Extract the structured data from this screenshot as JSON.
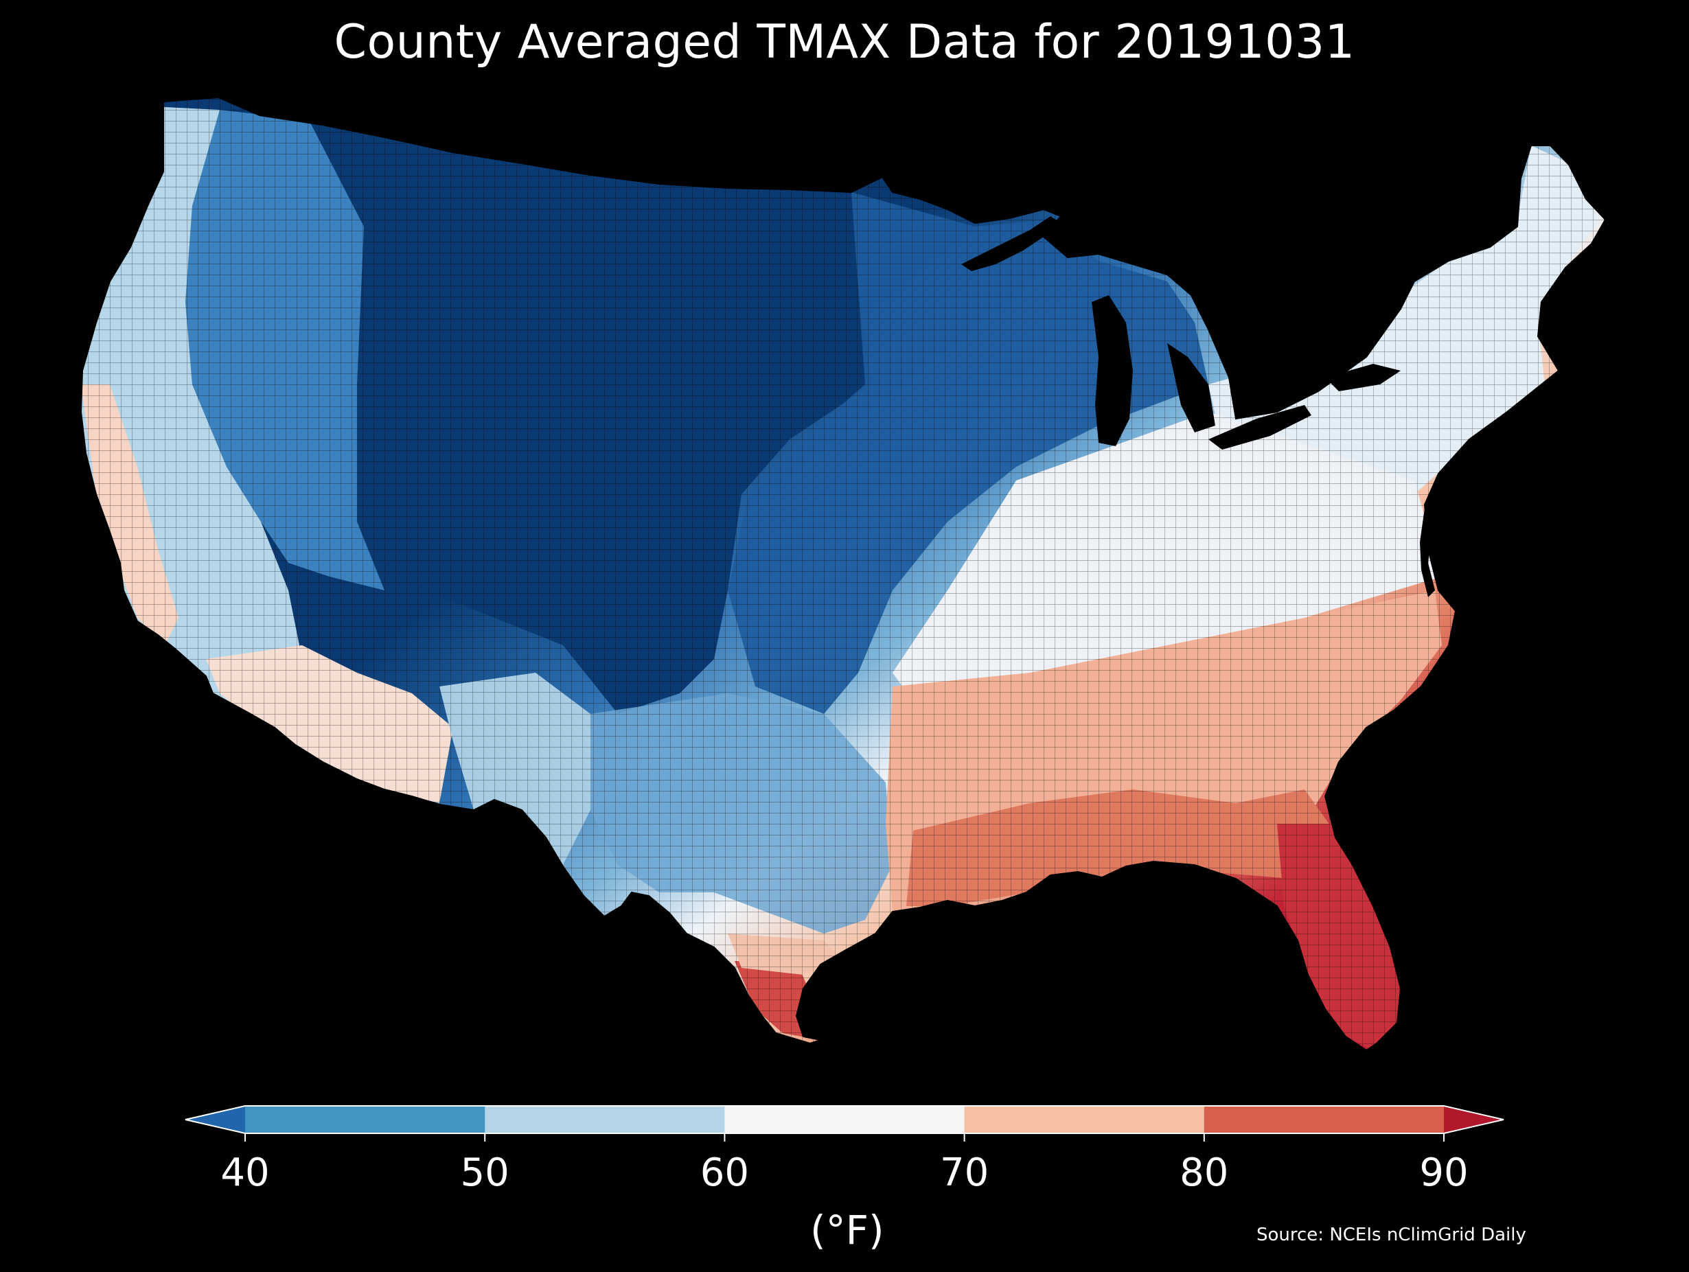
{
  "title": "County Averaged TMAX Data for 20191031",
  "map": {
    "region": "Contiguous United States",
    "background_color": "#000000",
    "county_border_color": "#000000",
    "state_border_color": "#222222",
    "temperature_pattern": [
      {
        "area": "Northern Plains / Rockies (MT, WY, ND, SD, NE, CO, KS)",
        "band": "<40",
        "color": "#0b3a72"
      },
      {
        "area": "Great Lakes / Upper Midwest",
        "band": "40-50",
        "color": "#1f62a6"
      },
      {
        "area": "Great Basin / Pacific Northwest interior",
        "band": "40-50",
        "color": "#3d86c0"
      },
      {
        "area": "Pacific coast / Arizona / New Mexico",
        "band": "50-60",
        "color": "#b4d5e8"
      },
      {
        "area": "Ohio Valley / Northeast",
        "band": "60-70",
        "color": "#eaf1f7"
      },
      {
        "area": "Southeast / Gulf Coast",
        "band": "70-80",
        "color": "#f2a98b"
      },
      {
        "area": "Florida / South Texas tip",
        "band": ">80",
        "color": "#c62a38"
      }
    ]
  },
  "legend": {
    "ticks": [
      "40",
      "50",
      "60",
      "70",
      "80",
      "90"
    ],
    "units": "(°F)",
    "extend": "both",
    "bins": [
      {
        "range": "<40",
        "color": "#2166ac"
      },
      {
        "range": "40-50",
        "color": "#4393c3"
      },
      {
        "range": "50-60",
        "color": "#b4d5e8"
      },
      {
        "range": "60-70",
        "color": "#f5f5f5"
      },
      {
        "range": "70-80",
        "color": "#f5c0a4"
      },
      {
        "range": "80-90",
        "color": "#d6604d"
      },
      {
        "range": ">90",
        "color": "#b2182b"
      }
    ]
  },
  "source": "Source: NCEIs nClimGrid Daily"
}
